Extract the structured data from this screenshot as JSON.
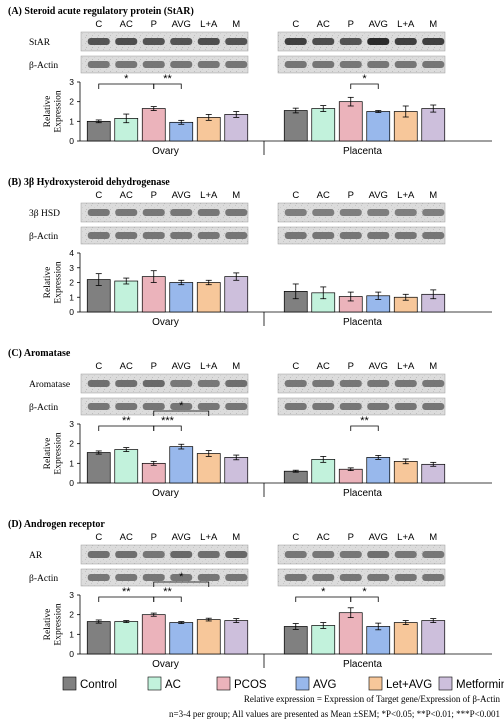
{
  "lanes": [
    "C",
    "AC",
    "P",
    "AVG",
    "L+A",
    "M"
  ],
  "legend": [
    "Control",
    "AC",
    "PCOS",
    "AVG",
    "Let+AVG",
    "Metformin"
  ],
  "colors": [
    "#808080",
    "#c2f2dc",
    "#ebb3bb",
    "#98b8ec",
    "#f7c79a",
    "#cdbfdc"
  ],
  "ylabel": "Relative\nExpression",
  "beta_actin": "β-Actin",
  "footnote": {
    "line1": "Relative expression = Expression of Target gene/Expression of β-Actin",
    "line2": "n=3-4 per group; All values are presented as Mean ±SEM; *P<0.05; **P<0.01; ***P<0.001"
  },
  "chart_data": [
    {
      "type": "bar",
      "title": "(A) Steroid acute regulatory protein (StAR)",
      "blot_label": "StAR",
      "ylim": [
        0,
        3
      ],
      "yticks": [
        0,
        1,
        2,
        3
      ],
      "categories": [
        "Ovary",
        "Placenta"
      ],
      "series": [
        {
          "name": "Control",
          "values": [
            1.0,
            1.55
          ],
          "err": [
            0.07,
            0.12
          ]
        },
        {
          "name": "AC",
          "values": [
            1.15,
            1.65
          ],
          "err": [
            0.22,
            0.15
          ]
        },
        {
          "name": "PCOS",
          "values": [
            1.65,
            2.0
          ],
          "err": [
            0.1,
            0.22
          ]
        },
        {
          "name": "AVG",
          "values": [
            0.95,
            1.5
          ],
          "err": [
            0.1,
            0.05
          ]
        },
        {
          "name": "Let+AVG",
          "values": [
            1.2,
            1.5
          ],
          "err": [
            0.15,
            0.28
          ]
        },
        {
          "name": "Metformin",
          "values": [
            1.35,
            1.65
          ],
          "err": [
            0.15,
            0.18
          ]
        }
      ],
      "annotations": [
        {
          "panel": 0,
          "from": 0,
          "to": 2,
          "level": 0,
          "label": "*"
        },
        {
          "panel": 0,
          "from": 2,
          "to": 3,
          "level": 0,
          "label": "**"
        },
        {
          "panel": 1,
          "from": 2,
          "to": 3,
          "level": 0,
          "label": "*"
        }
      ]
    },
    {
      "type": "bar",
      "title": "(B) 3β Hydroxysteroid dehydrogenase",
      "blot_label": "3β HSD",
      "ylim": [
        0,
        4
      ],
      "yticks": [
        0,
        1,
        2,
        3,
        4
      ],
      "categories": [
        "Ovary",
        "Placenta"
      ],
      "series": [
        {
          "name": "Control",
          "values": [
            2.2,
            1.4
          ],
          "err": [
            0.4,
            0.5
          ]
        },
        {
          "name": "AC",
          "values": [
            2.1,
            1.3
          ],
          "err": [
            0.2,
            0.4
          ]
        },
        {
          "name": "PCOS",
          "values": [
            2.4,
            1.05
          ],
          "err": [
            0.4,
            0.3
          ]
        },
        {
          "name": "AVG",
          "values": [
            2.0,
            1.1
          ],
          "err": [
            0.15,
            0.25
          ]
        },
        {
          "name": "Let+AVG",
          "values": [
            2.0,
            1.0
          ],
          "err": [
            0.15,
            0.2
          ]
        },
        {
          "name": "Metformin",
          "values": [
            2.4,
            1.2
          ],
          "err": [
            0.25,
            0.3
          ]
        }
      ],
      "annotations": []
    },
    {
      "type": "bar",
      "title": "(C) Aromatase",
      "blot_label": "Aromatase",
      "ylim": [
        0,
        3
      ],
      "yticks": [
        0,
        1,
        2,
        3
      ],
      "categories": [
        "Ovary",
        "Placenta"
      ],
      "series": [
        {
          "name": "Control",
          "values": [
            1.55,
            0.6
          ],
          "err": [
            0.08,
            0.05
          ]
        },
        {
          "name": "AC",
          "values": [
            1.7,
            1.2
          ],
          "err": [
            0.1,
            0.15
          ]
        },
        {
          "name": "PCOS",
          "values": [
            1.0,
            0.7
          ],
          "err": [
            0.1,
            0.07
          ]
        },
        {
          "name": "AVG",
          "values": [
            1.85,
            1.3
          ],
          "err": [
            0.12,
            0.1
          ]
        },
        {
          "name": "Let+AVG",
          "values": [
            1.5,
            1.1
          ],
          "err": [
            0.15,
            0.12
          ]
        },
        {
          "name": "Metformin",
          "values": [
            1.3,
            0.95
          ],
          "err": [
            0.12,
            0.1
          ]
        }
      ],
      "annotations": [
        {
          "panel": 0,
          "from": 0,
          "to": 2,
          "level": 0,
          "label": "**"
        },
        {
          "panel": 0,
          "from": 2,
          "to": 3,
          "level": 0,
          "label": "***"
        },
        {
          "panel": 0,
          "from": 2,
          "to": 4,
          "level": 1,
          "label": "*"
        },
        {
          "panel": 1,
          "from": 2,
          "to": 3,
          "level": 0,
          "label": "**"
        }
      ]
    },
    {
      "type": "bar",
      "title": "(D) Androgen receptor",
      "blot_label": "AR",
      "ylim": [
        0,
        3
      ],
      "yticks": [
        0,
        1,
        2,
        3
      ],
      "categories": [
        "Ovary",
        "Placenta"
      ],
      "series": [
        {
          "name": "Control",
          "values": [
            1.65,
            1.4
          ],
          "err": [
            0.08,
            0.15
          ]
        },
        {
          "name": "AC",
          "values": [
            1.65,
            1.45
          ],
          "err": [
            0.05,
            0.15
          ]
        },
        {
          "name": "PCOS",
          "values": [
            2.0,
            2.1
          ],
          "err": [
            0.08,
            0.25
          ]
        },
        {
          "name": "AVG",
          "values": [
            1.6,
            1.4
          ],
          "err": [
            0.05,
            0.17
          ]
        },
        {
          "name": "Let+AVG",
          "values": [
            1.75,
            1.6
          ],
          "err": [
            0.07,
            0.1
          ]
        },
        {
          "name": "Metformin",
          "values": [
            1.7,
            1.7
          ],
          "err": [
            0.1,
            0.1
          ]
        }
      ],
      "annotations": [
        {
          "panel": 0,
          "from": 0,
          "to": 2,
          "level": 0,
          "label": "**"
        },
        {
          "panel": 0,
          "from": 2,
          "to": 3,
          "level": 0,
          "label": "**"
        },
        {
          "panel": 0,
          "from": 2,
          "to": 4,
          "level": 1,
          "label": "*"
        },
        {
          "panel": 1,
          "from": 0,
          "to": 2,
          "level": 0,
          "label": "*"
        },
        {
          "panel": 1,
          "from": 2,
          "to": 3,
          "level": 0,
          "label": "*"
        }
      ]
    }
  ]
}
